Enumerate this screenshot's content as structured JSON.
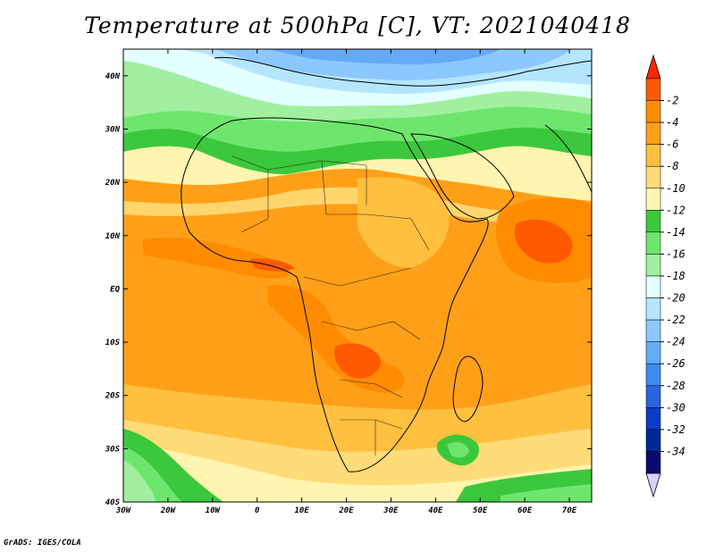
{
  "title": "Temperature at 500hPa [C], VT: 2021040418",
  "credit": "GrADS: IGES/COLA",
  "map": {
    "lon_range": [
      -30,
      75
    ],
    "lat_range": [
      -40,
      45
    ],
    "lat_ticks": [
      "40N",
      "30N",
      "20N",
      "10N",
      "EQ",
      "10S",
      "20S",
      "30S",
      "40S"
    ],
    "lon_ticks": [
      "30W",
      "20W",
      "10W",
      "0",
      "10E",
      "20E",
      "30E",
      "40E",
      "50E",
      "60E",
      "70E"
    ]
  },
  "colorbar": {
    "labels": [
      "-2",
      "-4",
      "-6",
      "-8",
      "-10",
      "-12",
      "-14",
      "-16",
      "-18",
      "-20",
      "-22",
      "-24",
      "-26",
      "-28",
      "-30",
      "-32",
      "-34"
    ],
    "colors": [
      "#ff5a00",
      "#ff8c00",
      "#ffa018",
      "#ffc040",
      "#ffdc78",
      "#fff5b0",
      "#3cc83c",
      "#6ee66e",
      "#a0f0a0",
      "#e4ffff",
      "#b4e6ff",
      "#8cc8ff",
      "#64aaf5",
      "#3c8cf0",
      "#2864dc",
      "#0a3cc8",
      "#002896",
      "#0a0a6e"
    ],
    "arrow_top_color": "#ff2800",
    "arrow_bottom_color": "#d8d0ff"
  }
}
